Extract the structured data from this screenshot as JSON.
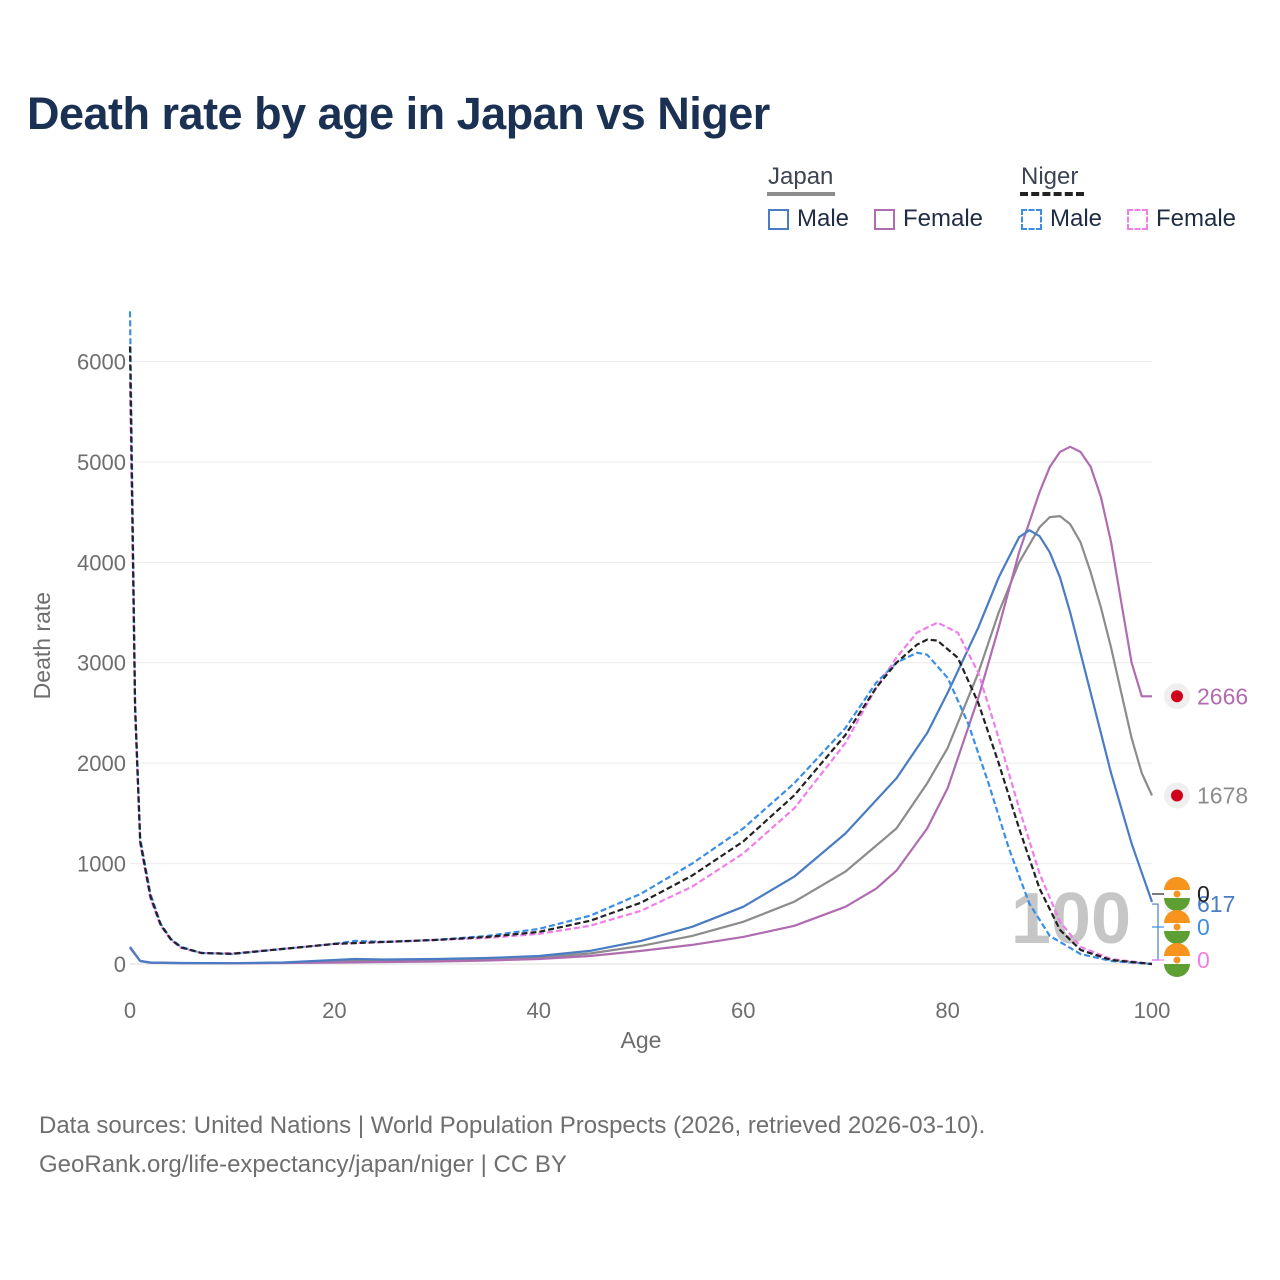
{
  "title": "Death rate by age in Japan vs Niger",
  "legend": {
    "japan": {
      "title": "Japan",
      "male": "Male",
      "female": "Female"
    },
    "niger": {
      "title": "Niger",
      "male": "Male",
      "female": "Female"
    }
  },
  "footer": {
    "line1": "Data sources: United Nations | World Population Prospects (2026, retrieved 2026-03-10).",
    "line2": "GeoRank.org/life-expectancy/japan/niger | CC BY"
  },
  "colors": {
    "japan_male": "#4a7cc4",
    "japan_female": "#b06cb0",
    "japan_total": "#8c8c8c",
    "niger_male": "#3a8ee6",
    "niger_female": "#f07ee8",
    "niger_total": "#222222",
    "japan_flag": "#d0021b",
    "niger_flag_orange": "#f7941d",
    "niger_flag_green": "#5e9f34"
  },
  "chart_data": {
    "type": "line",
    "title": "Death rate by age in Japan vs Niger",
    "xlabel": "Age",
    "ylabel": "Death rate",
    "xlim": [
      0,
      100
    ],
    "ylim": [
      0,
      6500
    ],
    "x_ticks": [
      0,
      20,
      40,
      60,
      80,
      100
    ],
    "y_ticks": [
      0,
      1000,
      2000,
      3000,
      4000,
      5000,
      6000
    ],
    "grid": true,
    "age_marker": 100,
    "series": [
      {
        "name": "Japan Male",
        "key": "japan_male",
        "country": "Japan",
        "dash": false,
        "end_value": 617,
        "points": [
          [
            0,
            170
          ],
          [
            1,
            30
          ],
          [
            2,
            15
          ],
          [
            5,
            10
          ],
          [
            10,
            8
          ],
          [
            15,
            15
          ],
          [
            20,
            40
          ],
          [
            22,
            50
          ],
          [
            25,
            45
          ],
          [
            30,
            50
          ],
          [
            35,
            60
          ],
          [
            40,
            80
          ],
          [
            45,
            130
          ],
          [
            50,
            230
          ],
          [
            55,
            370
          ],
          [
            60,
            570
          ],
          [
            65,
            870
          ],
          [
            70,
            1300
          ],
          [
            75,
            1850
          ],
          [
            78,
            2300
          ],
          [
            80,
            2700
          ],
          [
            83,
            3350
          ],
          [
            85,
            3850
          ],
          [
            87,
            4250
          ],
          [
            88,
            4320
          ],
          [
            89,
            4260
          ],
          [
            90,
            4100
          ],
          [
            91,
            3850
          ],
          [
            92,
            3500
          ],
          [
            94,
            2700
          ],
          [
            96,
            1900
          ],
          [
            98,
            1200
          ],
          [
            100,
            617
          ]
        ]
      },
      {
        "name": "Japan Female",
        "key": "japan_female",
        "country": "Japan",
        "dash": false,
        "end_value": 2666,
        "points": [
          [
            0,
            160
          ],
          [
            1,
            30
          ],
          [
            2,
            12
          ],
          [
            5,
            8
          ],
          [
            10,
            6
          ],
          [
            15,
            10
          ],
          [
            20,
            15
          ],
          [
            25,
            20
          ],
          [
            30,
            25
          ],
          [
            35,
            35
          ],
          [
            40,
            50
          ],
          [
            45,
            80
          ],
          [
            50,
            130
          ],
          [
            55,
            190
          ],
          [
            60,
            270
          ],
          [
            65,
            380
          ],
          [
            70,
            570
          ],
          [
            73,
            750
          ],
          [
            75,
            930
          ],
          [
            78,
            1350
          ],
          [
            80,
            1750
          ],
          [
            83,
            2650
          ],
          [
            85,
            3350
          ],
          [
            87,
            4100
          ],
          [
            89,
            4700
          ],
          [
            90,
            4950
          ],
          [
            91,
            5100
          ],
          [
            92,
            5150
          ],
          [
            93,
            5100
          ],
          [
            94,
            4950
          ],
          [
            95,
            4650
          ],
          [
            96,
            4200
          ],
          [
            97,
            3600
          ],
          [
            98,
            3000
          ],
          [
            99,
            2666
          ],
          [
            100,
            2666
          ]
        ]
      },
      {
        "name": "Japan Total",
        "key": "japan_total",
        "country": "Japan",
        "dash": false,
        "end_value": 1678,
        "points": [
          [
            0,
            165
          ],
          [
            1,
            30
          ],
          [
            2,
            14
          ],
          [
            5,
            9
          ],
          [
            10,
            7
          ],
          [
            15,
            12
          ],
          [
            20,
            28
          ],
          [
            25,
            33
          ],
          [
            30,
            38
          ],
          [
            35,
            48
          ],
          [
            40,
            65
          ],
          [
            45,
            105
          ],
          [
            50,
            180
          ],
          [
            55,
            280
          ],
          [
            60,
            420
          ],
          [
            65,
            620
          ],
          [
            70,
            920
          ],
          [
            75,
            1350
          ],
          [
            78,
            1800
          ],
          [
            80,
            2150
          ],
          [
            83,
            2900
          ],
          [
            85,
            3500
          ],
          [
            87,
            4000
          ],
          [
            89,
            4350
          ],
          [
            90,
            4450
          ],
          [
            91,
            4460
          ],
          [
            92,
            4380
          ],
          [
            93,
            4200
          ],
          [
            94,
            3900
          ],
          [
            95,
            3550
          ],
          [
            96,
            3150
          ],
          [
            97,
            2700
          ],
          [
            98,
            2250
          ],
          [
            99,
            1900
          ],
          [
            100,
            1678
          ]
        ]
      },
      {
        "name": "Niger Male",
        "key": "niger_male",
        "country": "Niger",
        "dash": true,
        "end_value": 0,
        "points": [
          [
            0,
            6500
          ],
          [
            0.5,
            2600
          ],
          [
            1,
            1250
          ],
          [
            2,
            700
          ],
          [
            3,
            400
          ],
          [
            4,
            250
          ],
          [
            5,
            170
          ],
          [
            7,
            110
          ],
          [
            10,
            100
          ],
          [
            15,
            150
          ],
          [
            20,
            200
          ],
          [
            22,
            230
          ],
          [
            25,
            220
          ],
          [
            30,
            240
          ],
          [
            35,
            280
          ],
          [
            40,
            350
          ],
          [
            45,
            480
          ],
          [
            50,
            700
          ],
          [
            55,
            1000
          ],
          [
            60,
            1350
          ],
          [
            65,
            1800
          ],
          [
            70,
            2350
          ],
          [
            73,
            2800
          ],
          [
            75,
            3000
          ],
          [
            77,
            3100
          ],
          [
            78,
            3080
          ],
          [
            80,
            2850
          ],
          [
            82,
            2400
          ],
          [
            84,
            1800
          ],
          [
            86,
            1150
          ],
          [
            88,
            600
          ],
          [
            90,
            280
          ],
          [
            93,
            100
          ],
          [
            96,
            30
          ],
          [
            100,
            0
          ]
        ]
      },
      {
        "name": "Niger Female",
        "key": "niger_female",
        "country": "Niger",
        "dash": true,
        "end_value": 0,
        "points": [
          [
            0,
            5800
          ],
          [
            0.5,
            2500
          ],
          [
            1,
            1200
          ],
          [
            2,
            650
          ],
          [
            3,
            380
          ],
          [
            4,
            240
          ],
          [
            5,
            160
          ],
          [
            7,
            110
          ],
          [
            10,
            105
          ],
          [
            15,
            150
          ],
          [
            20,
            200
          ],
          [
            25,
            220
          ],
          [
            30,
            240
          ],
          [
            35,
            260
          ],
          [
            40,
            300
          ],
          [
            45,
            380
          ],
          [
            50,
            530
          ],
          [
            55,
            770
          ],
          [
            60,
            1100
          ],
          [
            65,
            1550
          ],
          [
            70,
            2200
          ],
          [
            73,
            2750
          ],
          [
            75,
            3050
          ],
          [
            77,
            3300
          ],
          [
            79,
            3400
          ],
          [
            81,
            3300
          ],
          [
            83,
            2900
          ],
          [
            85,
            2250
          ],
          [
            87,
            1550
          ],
          [
            89,
            900
          ],
          [
            91,
            420
          ],
          [
            93,
            170
          ],
          [
            96,
            50
          ],
          [
            100,
            0
          ]
        ]
      },
      {
        "name": "Niger Total",
        "key": "niger_total",
        "country": "Niger",
        "dash": true,
        "end_value": 0,
        "points": [
          [
            0,
            6150
          ],
          [
            0.5,
            2550
          ],
          [
            1,
            1220
          ],
          [
            2,
            675
          ],
          [
            3,
            390
          ],
          [
            4,
            245
          ],
          [
            5,
            165
          ],
          [
            7,
            110
          ],
          [
            10,
            102
          ],
          [
            15,
            150
          ],
          [
            20,
            200
          ],
          [
            25,
            220
          ],
          [
            30,
            240
          ],
          [
            35,
            270
          ],
          [
            40,
            320
          ],
          [
            45,
            430
          ],
          [
            50,
            610
          ],
          [
            55,
            880
          ],
          [
            60,
            1220
          ],
          [
            65,
            1680
          ],
          [
            70,
            2280
          ],
          [
            73,
            2750
          ],
          [
            75,
            3000
          ],
          [
            77,
            3180
          ],
          [
            78,
            3230
          ],
          [
            79,
            3220
          ],
          [
            81,
            3050
          ],
          [
            83,
            2600
          ],
          [
            85,
            2000
          ],
          [
            87,
            1350
          ],
          [
            89,
            750
          ],
          [
            91,
            340
          ],
          [
            93,
            140
          ],
          [
            96,
            40
          ],
          [
            100,
            0
          ]
        ]
      }
    ]
  }
}
